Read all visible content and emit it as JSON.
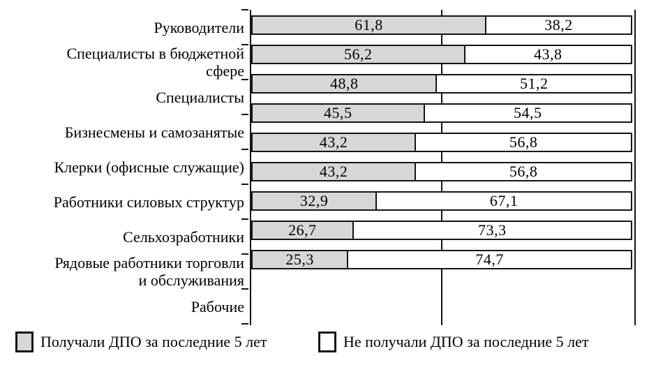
{
  "chart_data": {
    "type": "bar",
    "orientation": "horizontal",
    "stacked": true,
    "unit": "percent",
    "title": "",
    "xlabel": "",
    "ylabel": "",
    "xlim": [
      0,
      100
    ],
    "gridlines_x": [
      50,
      100
    ],
    "grid": "off",
    "legend_position": "bottom",
    "categories": [
      "Руководители",
      "Специалисты в бюджетной\nсфере",
      "Специалисты",
      "Бизнесмены и самозанятые",
      "Клерки (офисные служащие)",
      "Работники силовых структур",
      "Сельхозработники",
      "Рядовые работники торговли\nи обслуживания",
      "Рабочие"
    ],
    "series": [
      {
        "name": "Получали ДПО за последние 5 лет",
        "color": "#d7d7d7",
        "values": [
          61.8,
          56.2,
          48.8,
          45.5,
          43.2,
          43.2,
          32.9,
          26.7,
          25.3
        ],
        "value_labels": [
          "61,8",
          "56,2",
          "48,8",
          "45,5",
          "43,2",
          "43,2",
          "32,9",
          "26,7",
          "25,3"
        ]
      },
      {
        "name": "Не получали ДПО за последние 5 лет",
        "color": "#ffffff",
        "values": [
          38.2,
          43.8,
          51.2,
          54.5,
          56.8,
          56.8,
          67.1,
          73.3,
          74.7
        ],
        "value_labels": [
          "38,2",
          "43,8",
          "51,2",
          "54,5",
          "56,8",
          "56,8",
          "67,1",
          "73,3",
          "74,7"
        ]
      }
    ]
  },
  "legend": {
    "items": [
      {
        "label": "Получали ДПО за последние 5 лет",
        "color": "#d7d7d7"
      },
      {
        "label": "Не получали ДПО за последние 5 лет",
        "color": "#ffffff"
      }
    ]
  },
  "colors": {
    "bar_fill_received": "#d7d7d7",
    "bar_fill_not_received": "#ffffff",
    "border": "#141414",
    "background": "#ffffff",
    "text": "#000000"
  }
}
